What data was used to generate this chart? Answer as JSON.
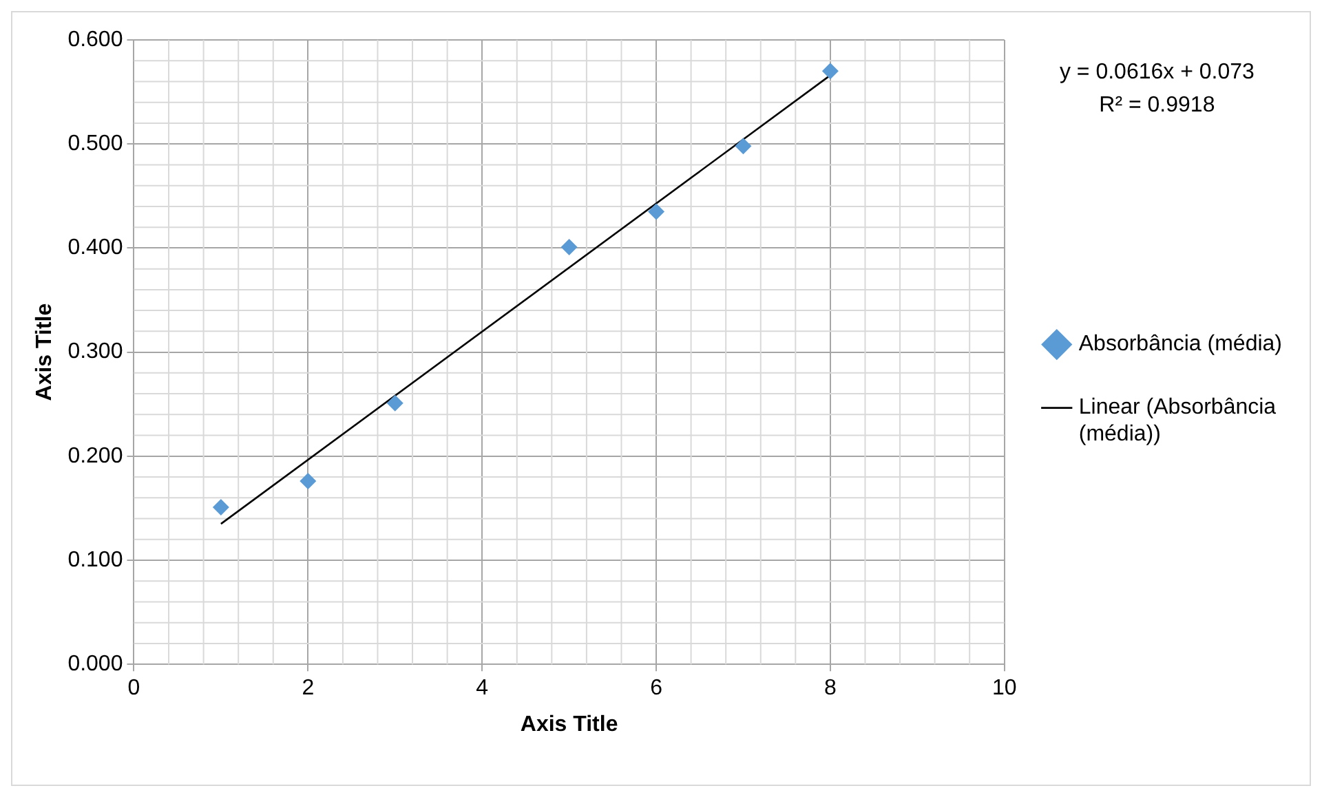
{
  "chart_data": {
    "type": "scatter",
    "xlabel": "Axis Title",
    "ylabel": "Axis Title",
    "xlim": [
      0,
      10
    ],
    "xticks": [
      0,
      2,
      4,
      6,
      8,
      10
    ],
    "ylim": [
      0,
      0.6
    ],
    "yticks": [
      {
        "value": 0,
        "label": "0.000"
      },
      {
        "value": 0.1,
        "label": "0.100"
      },
      {
        "value": 0.2,
        "label": "0.200"
      },
      {
        "value": 0.3,
        "label": "0.300"
      },
      {
        "value": 0.4,
        "label": "0.400"
      },
      {
        "value": 0.5,
        "label": "0.500"
      },
      {
        "value": 0.6,
        "label": "0.600"
      }
    ],
    "grid": true,
    "legend": "right",
    "marker": "diamond",
    "annotations": [
      "y = 0.0616x + 0.073",
      "R² = 0.9918"
    ],
    "series": [
      {
        "name": "Absorbância (média)",
        "color": "#5b9bd5",
        "x": [
          1,
          2,
          3,
          5,
          6,
          7,
          8
        ],
        "values": [
          0.151,
          0.176,
          0.251,
          0.401,
          0.435,
          0.498,
          0.57
        ]
      },
      {
        "name": "Linear (Absorbância (média))",
        "type": "line",
        "color": "#000000",
        "marker": "none",
        "x": [
          1,
          8
        ],
        "values": [
          0.135,
          0.566
        ]
      }
    ]
  }
}
